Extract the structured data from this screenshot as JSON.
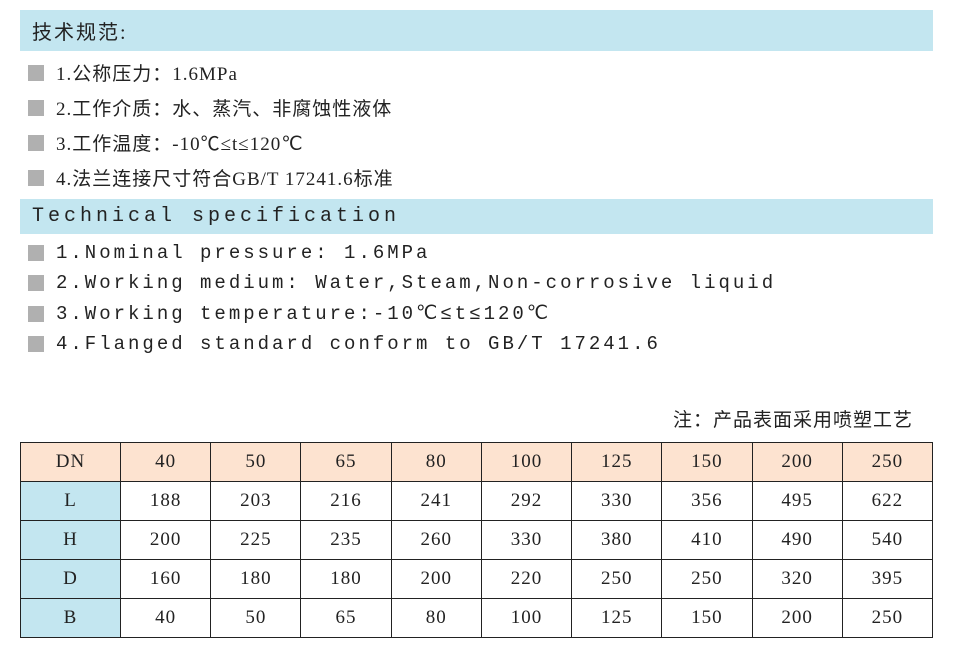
{
  "section_cn": {
    "title": "技术规范:",
    "items": [
      "1.公称压力：1.6MPa",
      "2.工作介质：水、蒸汽、非腐蚀性液体",
      "3.工作温度：-10℃≤t≤120℃",
      "4.法兰连接尺寸符合GB/T 17241.6标准"
    ]
  },
  "section_en": {
    "title": "Technical specification",
    "items": [
      "1.Nominal pressure: 1.6MPa",
      "2.Working medium: Water,Steam,Non-corrosive liquid",
      "3.Working temperature:-10℃≤t≤120℃",
      "4.Flanged standard conform to GB/T 17241.6"
    ]
  },
  "note": "注：产品表面采用喷塑工艺",
  "table": {
    "corner": "DN",
    "columns": [
      "40",
      "50",
      "65",
      "80",
      "100",
      "125",
      "150",
      "200",
      "250"
    ],
    "rows": [
      {
        "label": "L",
        "values": [
          "188",
          "203",
          "216",
          "241",
          "292",
          "330",
          "356",
          "495",
          "622"
        ]
      },
      {
        "label": "H",
        "values": [
          "200",
          "225",
          "235",
          "260",
          "330",
          "380",
          "410",
          "490",
          "540"
        ]
      },
      {
        "label": "D",
        "values": [
          "160",
          "180",
          "180",
          "200",
          "220",
          "250",
          "250",
          "320",
          "395"
        ]
      },
      {
        "label": "B",
        "values": [
          "40",
          "50",
          "65",
          "80",
          "100",
          "125",
          "150",
          "200",
          "250"
        ]
      }
    ],
    "colors": {
      "row_header_bg": "#c3e6f0",
      "col_header_bg": "#fde3d0",
      "border": "#222222",
      "text": "#222222",
      "background": "#ffffff"
    }
  }
}
